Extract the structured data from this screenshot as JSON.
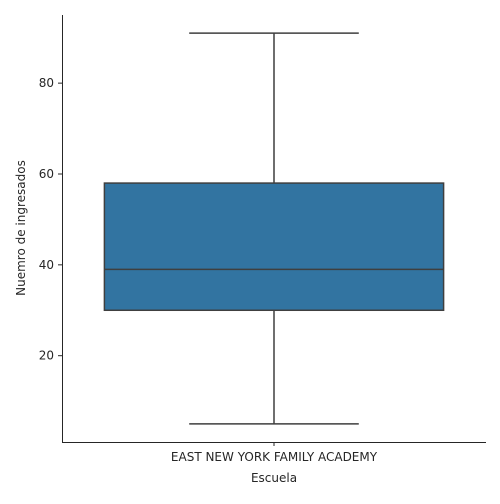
{
  "chart_data": {
    "type": "box",
    "title": "",
    "xlabel": "Escuela",
    "ylabel": "Nuemro de ingresados",
    "categories": [
      "EAST NEW YORK FAMILY ACADEMY"
    ],
    "boxes": [
      {
        "category": "EAST NEW YORK FAMILY ACADEMY",
        "min": 5,
        "q1": 30,
        "median": 39,
        "q3": 58,
        "max": 91
      }
    ],
    "y_ticks": [
      20,
      40,
      60,
      80
    ],
    "ylim": [
      1,
      95
    ],
    "grid": false,
    "legend": "none",
    "colors": {
      "box_fill": "#3274a1",
      "lines": "#3f3f3f",
      "axes": "#262626"
    }
  }
}
